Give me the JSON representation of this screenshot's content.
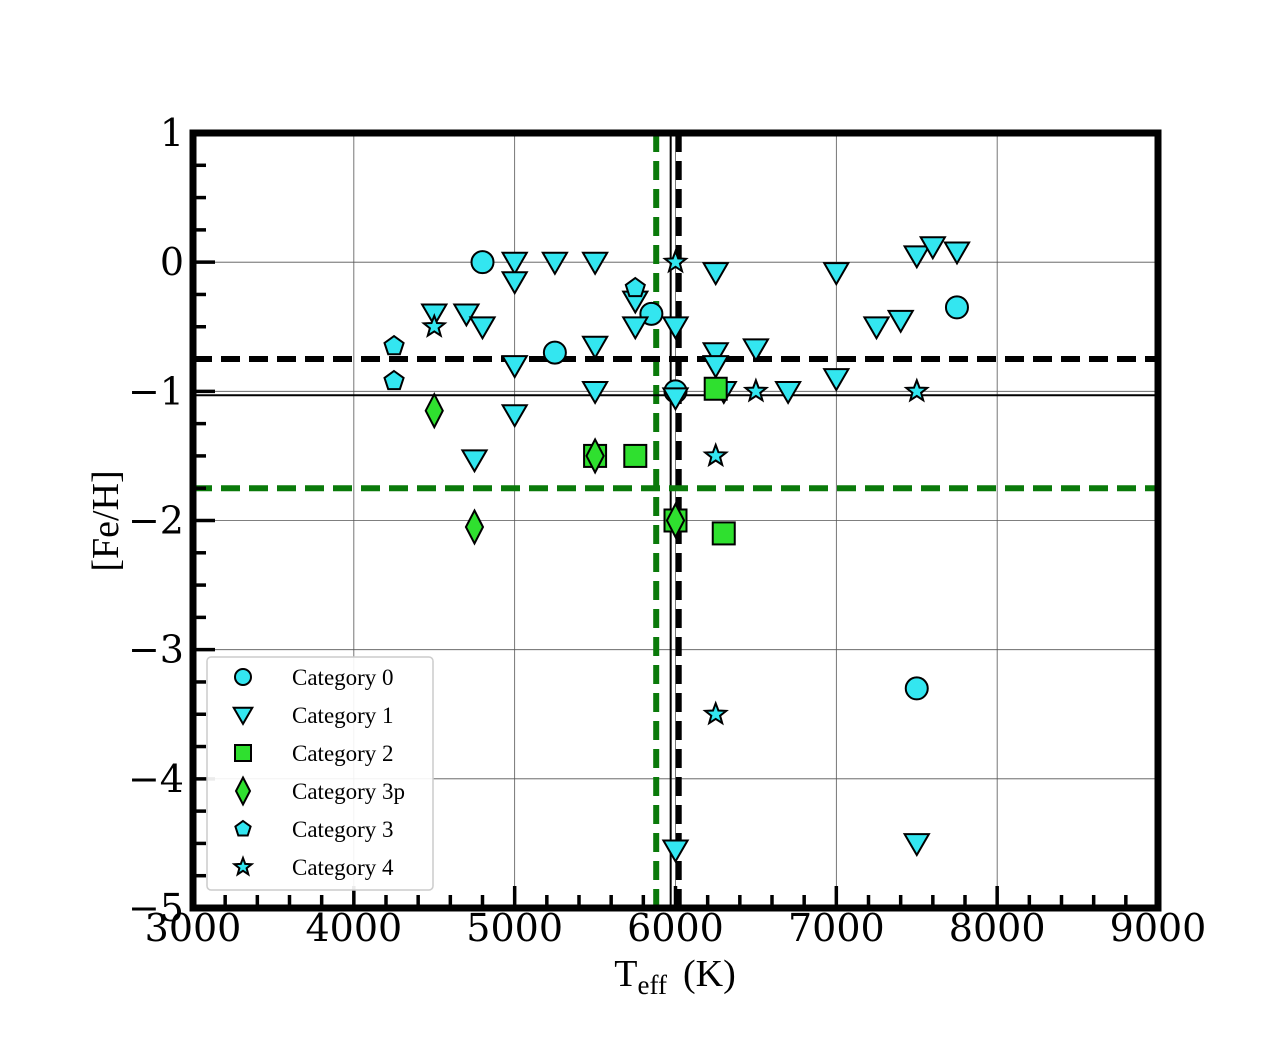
{
  "chart_data": {
    "type": "scatter",
    "xlabel_main": "T",
    "xlabel_sub": "eff",
    "xlabel_unit": "(K)",
    "ylabel": "[Fe/H]",
    "xlim": [
      3000,
      9000
    ],
    "ylim": [
      -5,
      1
    ],
    "xticks": [
      3000,
      4000,
      5000,
      6000,
      7000,
      8000,
      9000
    ],
    "yticks": [
      1,
      0,
      -1,
      -2,
      -3,
      -4,
      -5
    ],
    "xtick_labels": [
      "3000",
      "4000",
      "5000",
      "6000",
      "7000",
      "8000",
      "9000"
    ],
    "ytick_labels": [
      "1",
      "0",
      "−1",
      "−2",
      "−3",
      "−4",
      "−5"
    ],
    "grid": true,
    "legend_position": "bottom-left",
    "colors": {
      "cyan": "#33e6f0",
      "green": "#2fe02f",
      "dark_green": "#0a7a0a",
      "black": "#000000"
    },
    "reference_lines": [
      {
        "orientation": "vertical",
        "value": 5970,
        "style": "solid",
        "color": "#000000"
      },
      {
        "orientation": "vertical",
        "value": 6020,
        "style": "dashed",
        "color": "#000000"
      },
      {
        "orientation": "vertical",
        "value": 5880,
        "style": "dashed",
        "color": "#0a7a0a"
      },
      {
        "orientation": "horizontal",
        "value": -1.03,
        "style": "solid",
        "color": "#000000"
      },
      {
        "orientation": "horizontal",
        "value": -0.75,
        "style": "dashed",
        "color": "#000000"
      },
      {
        "orientation": "horizontal",
        "value": -1.75,
        "style": "dashed",
        "color": "#0a7a0a"
      }
    ],
    "series": [
      {
        "name": "Category 0",
        "marker": "circle",
        "color": "#33e6f0",
        "points": [
          [
            4800,
            0.0
          ],
          [
            5250,
            -0.7
          ],
          [
            5850,
            -0.4
          ],
          [
            6000,
            -1.0
          ],
          [
            7750,
            -0.35
          ],
          [
            7500,
            -3.3
          ]
        ]
      },
      {
        "name": "Category 1",
        "marker": "triangle-down",
        "color": "#33e6f0",
        "points": [
          [
            4500,
            -0.4
          ],
          [
            4700,
            -0.4
          ],
          [
            4800,
            -0.5
          ],
          [
            4750,
            -1.53
          ],
          [
            5000,
            0.0
          ],
          [
            5000,
            -0.15
          ],
          [
            5000,
            -0.8
          ],
          [
            5000,
            -1.18
          ],
          [
            5250,
            0.0
          ],
          [
            5500,
            0.0
          ],
          [
            5500,
            -0.65
          ],
          [
            5500,
            -1.0
          ],
          [
            5750,
            -0.3
          ],
          [
            5750,
            -0.5
          ],
          [
            6000,
            -0.5
          ],
          [
            6000,
            -1.05
          ],
          [
            6000,
            -4.55
          ],
          [
            6250,
            -0.08
          ],
          [
            6250,
            -0.7
          ],
          [
            6250,
            -0.8
          ],
          [
            6300,
            -1.0
          ],
          [
            6500,
            -0.67
          ],
          [
            6700,
            -1.0
          ],
          [
            7000,
            -0.08
          ],
          [
            7000,
            -0.9
          ],
          [
            7250,
            -0.5
          ],
          [
            7400,
            -0.45
          ],
          [
            7500,
            0.05
          ],
          [
            7600,
            0.12
          ],
          [
            7750,
            0.08
          ],
          [
            7500,
            -4.5
          ]
        ]
      },
      {
        "name": "Category 2",
        "marker": "square",
        "color": "#2fe02f",
        "points": [
          [
            5500,
            -1.5
          ],
          [
            5750,
            -1.5
          ],
          [
            6000,
            -2.0
          ],
          [
            6250,
            -0.98
          ],
          [
            6300,
            -2.1
          ]
        ]
      },
      {
        "name": "Category 3p",
        "marker": "diamond",
        "color": "#2fe02f",
        "points": [
          [
            4500,
            -1.15
          ],
          [
            4750,
            -2.05
          ],
          [
            5500,
            -1.5
          ],
          [
            6000,
            -2.0
          ]
        ]
      },
      {
        "name": "Category 3",
        "marker": "pentagon",
        "color": "#33e6f0",
        "points": [
          [
            4250,
            -0.65
          ],
          [
            4250,
            -0.92
          ],
          [
            5750,
            -0.2
          ]
        ]
      },
      {
        "name": "Category 4",
        "marker": "star",
        "color": "#33e6f0",
        "points": [
          [
            4500,
            -0.5
          ],
          [
            6000,
            0.0
          ],
          [
            6500,
            -1.0
          ],
          [
            7500,
            -1.0
          ],
          [
            6250,
            -1.5
          ],
          [
            6250,
            -3.5
          ]
        ]
      }
    ]
  }
}
